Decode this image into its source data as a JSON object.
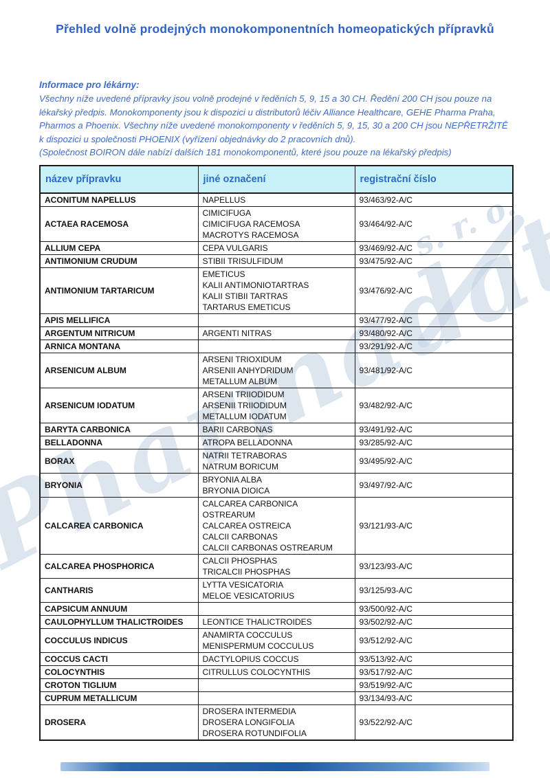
{
  "page": {
    "title": "Přehled volně prodejných monokomponentních homeopatických přípravků",
    "info_heading": "Informace pro lékárny:",
    "info_lines": [
      "Všechny níže uvedené přípravky jsou volně prodejné v ředěních 5, 9, 15 a 30 CH. Ředění 200 CH jsou pouze na",
      "lékařský předpis. Monokomponenty jsou k dispozici u distributorů léčiv Alliance Healthcare, GEHE Pharma Praha,",
      "Pharmos a Phoenix. Všechny níže uvedené monokomponenty v ředěních 5, 9, 15, 30 a 200 CH jsou NEPŘETRŽITĚ",
      "k dispozici u společnosti PHOENIX (vyřízení objednávky do 2 pracovních dnů).",
      "(Společnost BOIRON dále nabízí dalších 181 monokomponentů, které jsou pouze na lékařský předpis)"
    ],
    "watermark_text": "Pharmadata",
    "watermark_suffix": "s. r. o."
  },
  "colors": {
    "accent_blue": "#2f62c4",
    "info_blue": "#3f6cc6",
    "header_bg": "#c9f1f8",
    "header_text": "#2b6cc8",
    "watermark": "#c3d2e2",
    "border": "#1a1a1a",
    "footer_bar_blue": "#1f5aa6"
  },
  "table": {
    "columns": [
      "název přípravku",
      "jiné označení",
      "registrační číslo"
    ],
    "rows": [
      {
        "name": "ACONITUM NAPELLUS",
        "aliases": [
          "NAPELLUS"
        ],
        "reg": "93/463/92-A/C"
      },
      {
        "name": "ACTAEA RACEMOSA",
        "aliases": [
          "CIMICIFUGA",
          "CIMICIFUGA RACEMOSA",
          "MACROTYS RACEMOSA"
        ],
        "reg": "93/464/92-A/C"
      },
      {
        "name": "ALLIUM CEPA",
        "aliases": [
          "CEPA VULGARIS"
        ],
        "reg": "93/469/92-A/C"
      },
      {
        "name": "ANTIMONIUM CRUDUM",
        "aliases": [
          "STIBII TRISULFIDUM"
        ],
        "reg": "93/475/92-A/C"
      },
      {
        "name": "ANTIMONIUM TARTARICUM",
        "aliases": [
          "EMETICUS",
          "KALII ANTIMONIOTARTRAS",
          "KALII STIBII TARTRAS",
          "TARTARUS EMETICUS"
        ],
        "reg": "93/476/92-A/C"
      },
      {
        "name": "APIS MELLIFICA",
        "aliases": [],
        "reg": "93/477/92-A/C"
      },
      {
        "name": "ARGENTUM NITRICUM",
        "aliases": [
          "ARGENTI NITRAS"
        ],
        "reg": "93/480/92-A/C"
      },
      {
        "name": "ARNICA MONTANA",
        "aliases": [],
        "reg": "93/291/92-A/C"
      },
      {
        "name": "ARSENICUM ALBUM",
        "aliases": [
          "ARSENI TRIOXIDUM",
          "ARSENII ANHYDRIDUM",
          "METALLUM ALBUM"
        ],
        "reg": "93/481/92-A/C"
      },
      {
        "name": "ARSENICUM IODATUM",
        "aliases": [
          "ARSENI TRIIODIDUM",
          "ARSENII TRIIODIDUM",
          "METALLUM IODATUM"
        ],
        "reg": "93/482/92-A/C"
      },
      {
        "name": "BARYTA CARBONICA",
        "aliases": [
          "BARII CARBONAS"
        ],
        "reg": "93/491/92-A/C"
      },
      {
        "name": "BELLADONNA",
        "aliases": [
          "ATROPA BELLADONNA"
        ],
        "reg": "93/285/92-A/C"
      },
      {
        "name": "BORAX",
        "aliases": [
          "NATRII TETRABORAS",
          "NATRUM BORICUM"
        ],
        "reg": "93/495/92-A/C"
      },
      {
        "name": "BRYONIA",
        "aliases": [
          "BRYONIA ALBA",
          "BRYONIA DIOICA"
        ],
        "reg": "93/497/92-A/C"
      },
      {
        "name": "CALCAREA CARBONICA",
        "aliases": [
          "CALCAREA CARBONICA",
          "OSTREARUM",
          "CALCAREA OSTREICA",
          "CALCII CARBONAS",
          "CALCII CARBONAS OSTREARUM"
        ],
        "reg": "93/121/93-A/C"
      },
      {
        "name": "CALCAREA PHOSPHORICA",
        "aliases": [
          "CALCII PHOSPHAS",
          "TRICALCII PHOSPHAS"
        ],
        "reg": "93/123/93-A/C"
      },
      {
        "name": "CANTHARIS",
        "aliases": [
          "LYTTA VESICATORIA",
          "MELOE VESICATORIUS"
        ],
        "reg": "93/125/93-A/C"
      },
      {
        "name": "CAPSICUM ANNUUM",
        "aliases": [],
        "reg": "93/500/92-A/C"
      },
      {
        "name": "CAULOPHYLLUM THALICTROIDES",
        "aliases": [
          "LEONTICE THALICTROIDES"
        ],
        "reg": "93/502/92-A/C"
      },
      {
        "name": "COCCULUS INDICUS",
        "aliases": [
          "ANAMIRTA COCCULUS",
          "MENISPERMUM COCCULUS"
        ],
        "reg": "93/512/92-A/C"
      },
      {
        "name": "COCCUS CACTI",
        "aliases": [
          "DACTYLOPIUS COCCUS"
        ],
        "reg": "93/513/92-A/C"
      },
      {
        "name": "COLOCYNTHIS",
        "aliases": [
          "CITRULLUS COLOCYNTHIS"
        ],
        "reg": "93/517/92-A/C"
      },
      {
        "name": "CROTON TIGLIUM",
        "aliases": [],
        "reg": "93/519/92-A/C"
      },
      {
        "name": "CUPRUM METALLICUM",
        "aliases": [],
        "reg": "93/134/93-A/C"
      },
      {
        "name": "DROSERA",
        "aliases": [
          "DROSERA INTERMEDIA",
          "DROSERA LONGIFOLIA",
          "DROSERA ROTUNDIFOLIA"
        ],
        "reg": "93/522/92-A/C"
      }
    ]
  }
}
